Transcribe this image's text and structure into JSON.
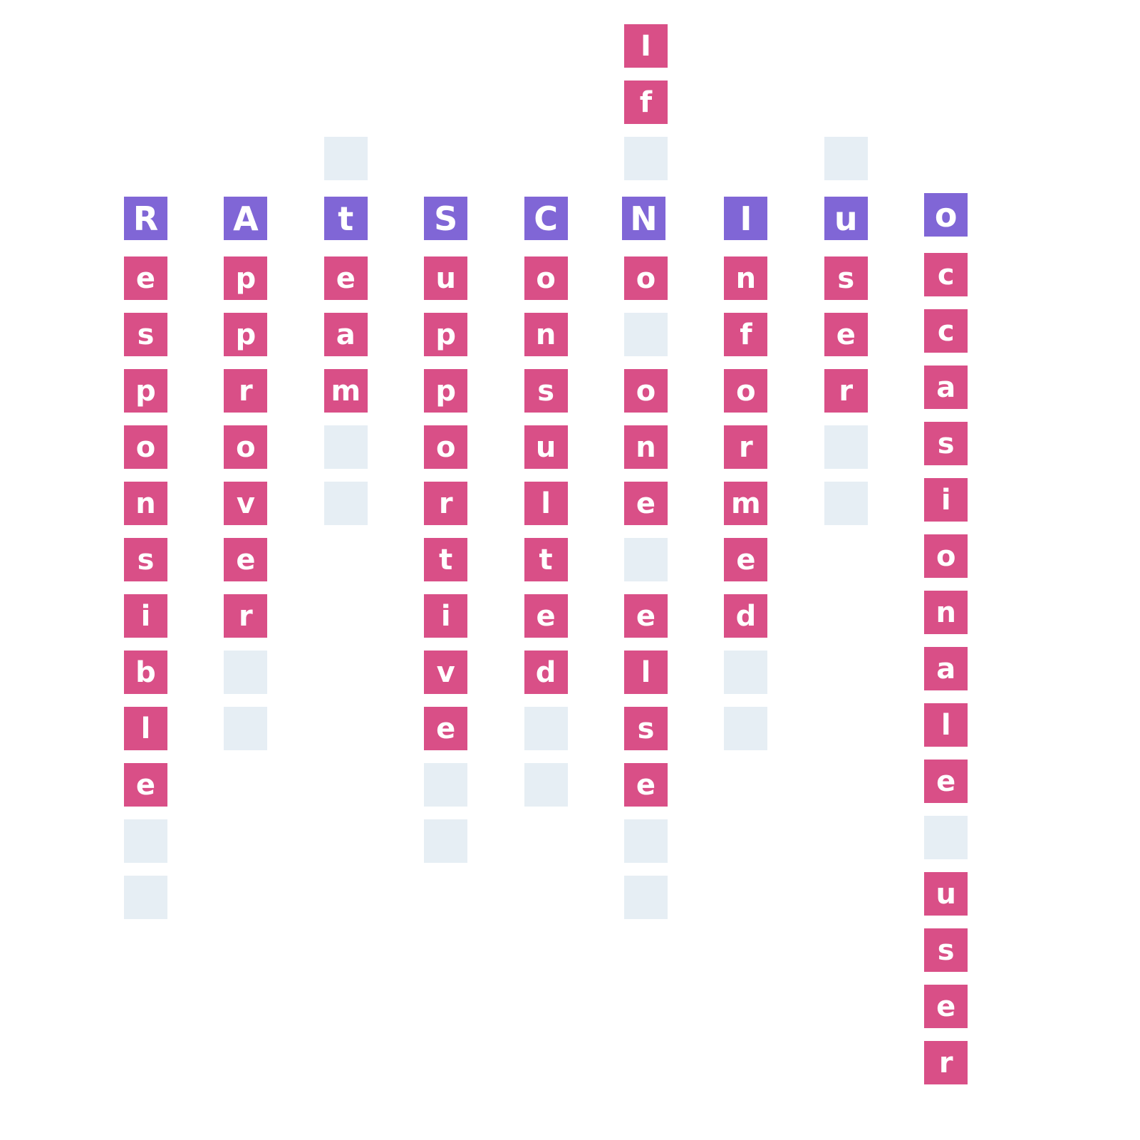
{
  "colors": {
    "header_tile": "#8066d6",
    "letter_tile": "#d94f87",
    "empty_tile": "#e6eef4"
  },
  "columns": [
    {
      "header": "R",
      "above": [],
      "below": [
        "e",
        "s",
        "p",
        "o",
        "n",
        "s",
        "i",
        "b",
        "l",
        "e",
        "",
        ""
      ]
    },
    {
      "header": "A",
      "above": [],
      "below": [
        "p",
        "p",
        "r",
        "o",
        "v",
        "e",
        "r",
        "",
        ""
      ]
    },
    {
      "header": "t",
      "above": [
        ""
      ],
      "below": [
        "e",
        "a",
        "m",
        "",
        ""
      ]
    },
    {
      "header": "S",
      "above": [],
      "below": [
        "u",
        "p",
        "p",
        "o",
        "r",
        "t",
        "i",
        "v",
        "e",
        "",
        ""
      ]
    },
    {
      "header": "C",
      "above": [],
      "below": [
        "o",
        "n",
        "s",
        "u",
        "l",
        "t",
        "e",
        "d",
        "",
        ""
      ]
    },
    {
      "header": "N",
      "above": [
        "I",
        "f",
        ""
      ],
      "below": [
        "o",
        "",
        "o",
        "n",
        "e",
        "",
        "e",
        "l",
        "s",
        "e",
        "",
        ""
      ]
    },
    {
      "header": "I",
      "above": [],
      "below": [
        "n",
        "f",
        "o",
        "r",
        "m",
        "e",
        "d",
        "",
        ""
      ]
    },
    {
      "header": "u",
      "above": [
        ""
      ],
      "below": [
        "s",
        "e",
        "r",
        "",
        ""
      ]
    },
    {
      "header": "o",
      "above": [],
      "below": [
        "c",
        "c",
        "a",
        "s",
        "i",
        "o",
        "n",
        "a",
        "l",
        "e",
        "",
        "u",
        "s",
        "e",
        "r"
      ]
    }
  ]
}
